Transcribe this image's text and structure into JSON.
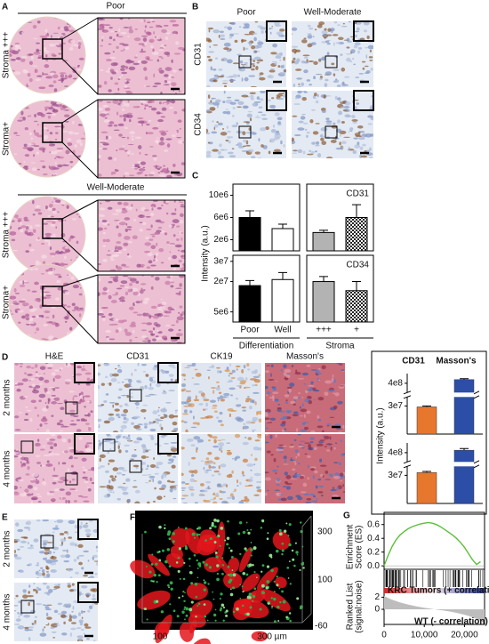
{
  "panels": {
    "A": {
      "label": "A",
      "poor": "Poor",
      "well": "Well-Moderate",
      "rows": [
        "Stroma +++",
        "Stroma+",
        "Stroma +++",
        "Stroma+"
      ]
    },
    "B": {
      "label": "B",
      "columns": [
        "Poor",
        "Well-Moderate"
      ],
      "rows": [
        "CD31",
        "CD34"
      ]
    },
    "C": {
      "label": "C"
    },
    "D": {
      "label": "D",
      "columns": [
        "H&E",
        "CD31",
        "CK19",
        "Masson's"
      ],
      "rows": [
        "2 months",
        "4 months"
      ]
    },
    "E": {
      "label": "E",
      "rows": [
        "2 months",
        "4 months"
      ]
    },
    "F": {
      "label": "F",
      "axis_labels": [
        "300",
        "100",
        "-60",
        "100",
        "300 µm"
      ]
    },
    "G": {
      "label": "G"
    }
  },
  "chart_data": [
    {
      "type": "bar-grid",
      "ylabel": "Intensity (a.u.)",
      "columns": [
        {
          "xlabel": "Differentiation",
          "categories": [
            "Poor",
            "Well"
          ],
          "fills": [
            "#000000",
            "#ffffff"
          ]
        },
        {
          "xlabel": "Stroma",
          "categories": [
            "+++",
            "+"
          ],
          "fills": [
            "#b3b3b3",
            "checker"
          ]
        }
      ],
      "rows": [
        {
          "title": "CD31",
          "ylim": [
            0,
            12000000
          ],
          "yticks": [
            {
              "value": 2000000,
              "label": "2e6"
            },
            {
              "value": 6000000,
              "label": "6e6"
            },
            {
              "value": 10000000,
              "label": "10e6"
            }
          ],
          "values": [
            [
              6000000,
              4000000
            ],
            [
              3300000,
              6000000
            ]
          ],
          "errors": [
            [
              1200000,
              800000
            ],
            [
              400000,
              2300000
            ]
          ]
        },
        {
          "title": "CD34",
          "ylim": [
            0,
            33000000
          ],
          "yticks": [
            {
              "value": 5000000,
              "label": "5e6"
            },
            {
              "value": 20000000,
              "label": "2e7"
            },
            {
              "value": 30000000,
              "label": "3e7"
            }
          ],
          "values": [
            [
              18000000,
              21000000
            ],
            [
              20000000,
              15500000
            ]
          ],
          "errors": [
            [
              2500000,
              3500000
            ],
            [
              2500000,
              4500000
            ]
          ]
        }
      ]
    },
    {
      "type": "broken-bar",
      "ylabel": "Intensity (a.u.)",
      "ylim_lower": [
        0,
        40000000
      ],
      "ylim_upper": [
        360000000,
        440000000
      ],
      "yticks": [
        {
          "value": 30000000,
          "label": "3e7"
        },
        {
          "value": 400000000,
          "label": "4e8"
        }
      ],
      "series": [
        {
          "name": "CD31",
          "color": "#e8772e",
          "values": [
            29000000,
            33000000
          ],
          "errors": [
            1000000,
            1200000
          ]
        },
        {
          "name": "Masson's",
          "color": "#2d4ea6",
          "values": [
            415000000,
            410000000
          ],
          "errors": [
            4000000,
            7000000
          ]
        }
      ]
    },
    {
      "type": "gsea",
      "ylabel": [
        "Enrichment",
        "Score (ES)"
      ],
      "ranked_label": [
        "Ranked List",
        "(signal:noise)"
      ],
      "pos_label": "KRC Tumors (+ correlation)",
      "neg_label": "WT (- correlation)",
      "color": "#5cbf3a",
      "x": [
        0,
        1000,
        2000,
        3000,
        4000,
        5000,
        6000,
        7000,
        8000,
        9000,
        10000,
        11000,
        12000,
        13000,
        14000,
        15000,
        16000,
        17000,
        18000,
        19000,
        20000,
        21000,
        22000,
        23000,
        24000
      ],
      "values": [
        0,
        0.15,
        0.28,
        0.38,
        0.45,
        0.5,
        0.54,
        0.57,
        0.59,
        0.61,
        0.62,
        0.63,
        0.62,
        0.6,
        0.57,
        0.53,
        0.49,
        0.45,
        0.4,
        0.34,
        0.27,
        0.18,
        0.09,
        0.02,
        0.06
      ],
      "xlim": [
        0,
        25000
      ],
      "xticks": [
        0,
        {
          "value": 10000,
          "label": "10,000"
        },
        {
          "value": 20000,
          "label": "20,000"
        }
      ],
      "ylim": [
        -0.05,
        0.7
      ],
      "yticks": [
        {
          "value": 0,
          "label": "0.0"
        },
        0.2,
        0.4,
        0.6
      ],
      "ranked_ylim": [
        -2.5,
        2.5
      ],
      "ranked_yticks": [
        2,
        0
      ]
    }
  ]
}
